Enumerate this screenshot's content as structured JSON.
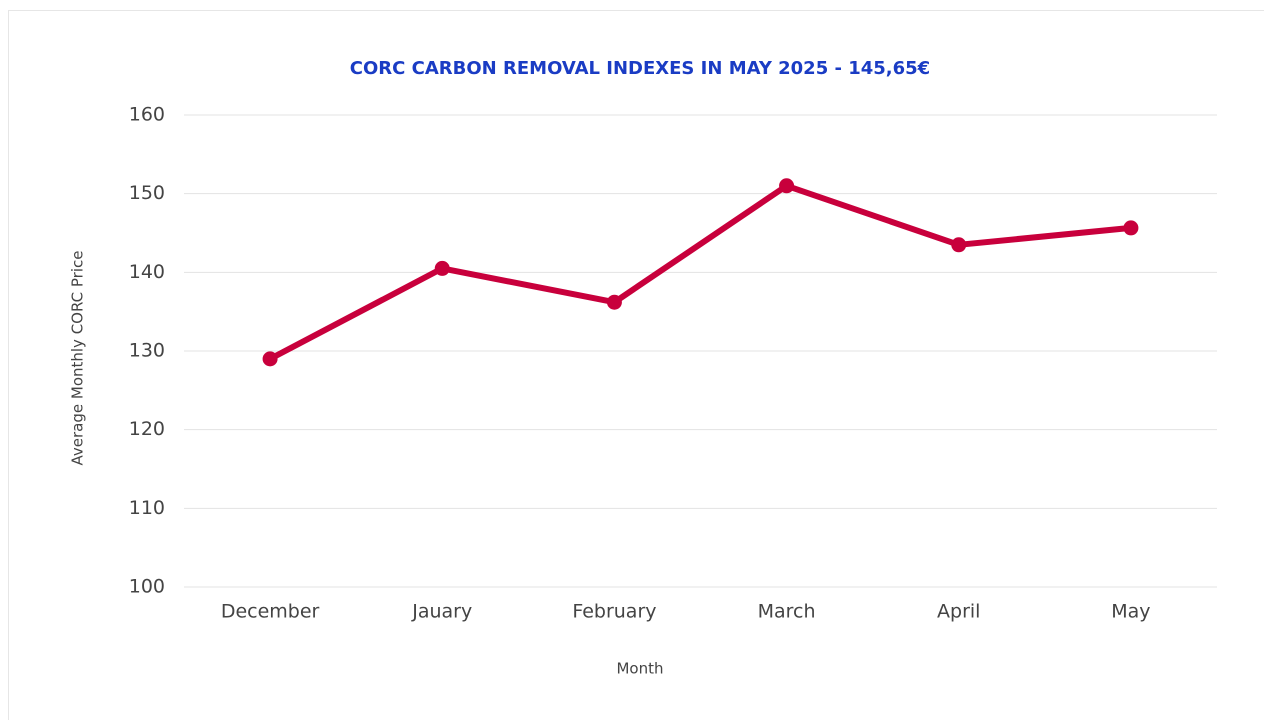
{
  "chart_data": {
    "type": "line",
    "title": "CORC CARBON REMOVAL INDEXES IN MAY 2025 - 145,65€",
    "x_label": "Month",
    "y_label": "Average Monthly CORC Price",
    "categories": [
      "December",
      "Jauary",
      "February",
      "March",
      "April",
      "May"
    ],
    "series": [
      {
        "name": "Average Monthly CORC Price",
        "color": "#c8003c",
        "values": [
          129,
          140.5,
          136.2,
          151,
          143.5,
          145.65
        ]
      }
    ],
    "ylim": [
      100,
      160
    ],
    "yticks": [
      100,
      110,
      120,
      130,
      140,
      150,
      160
    ],
    "grid": true
  }
}
